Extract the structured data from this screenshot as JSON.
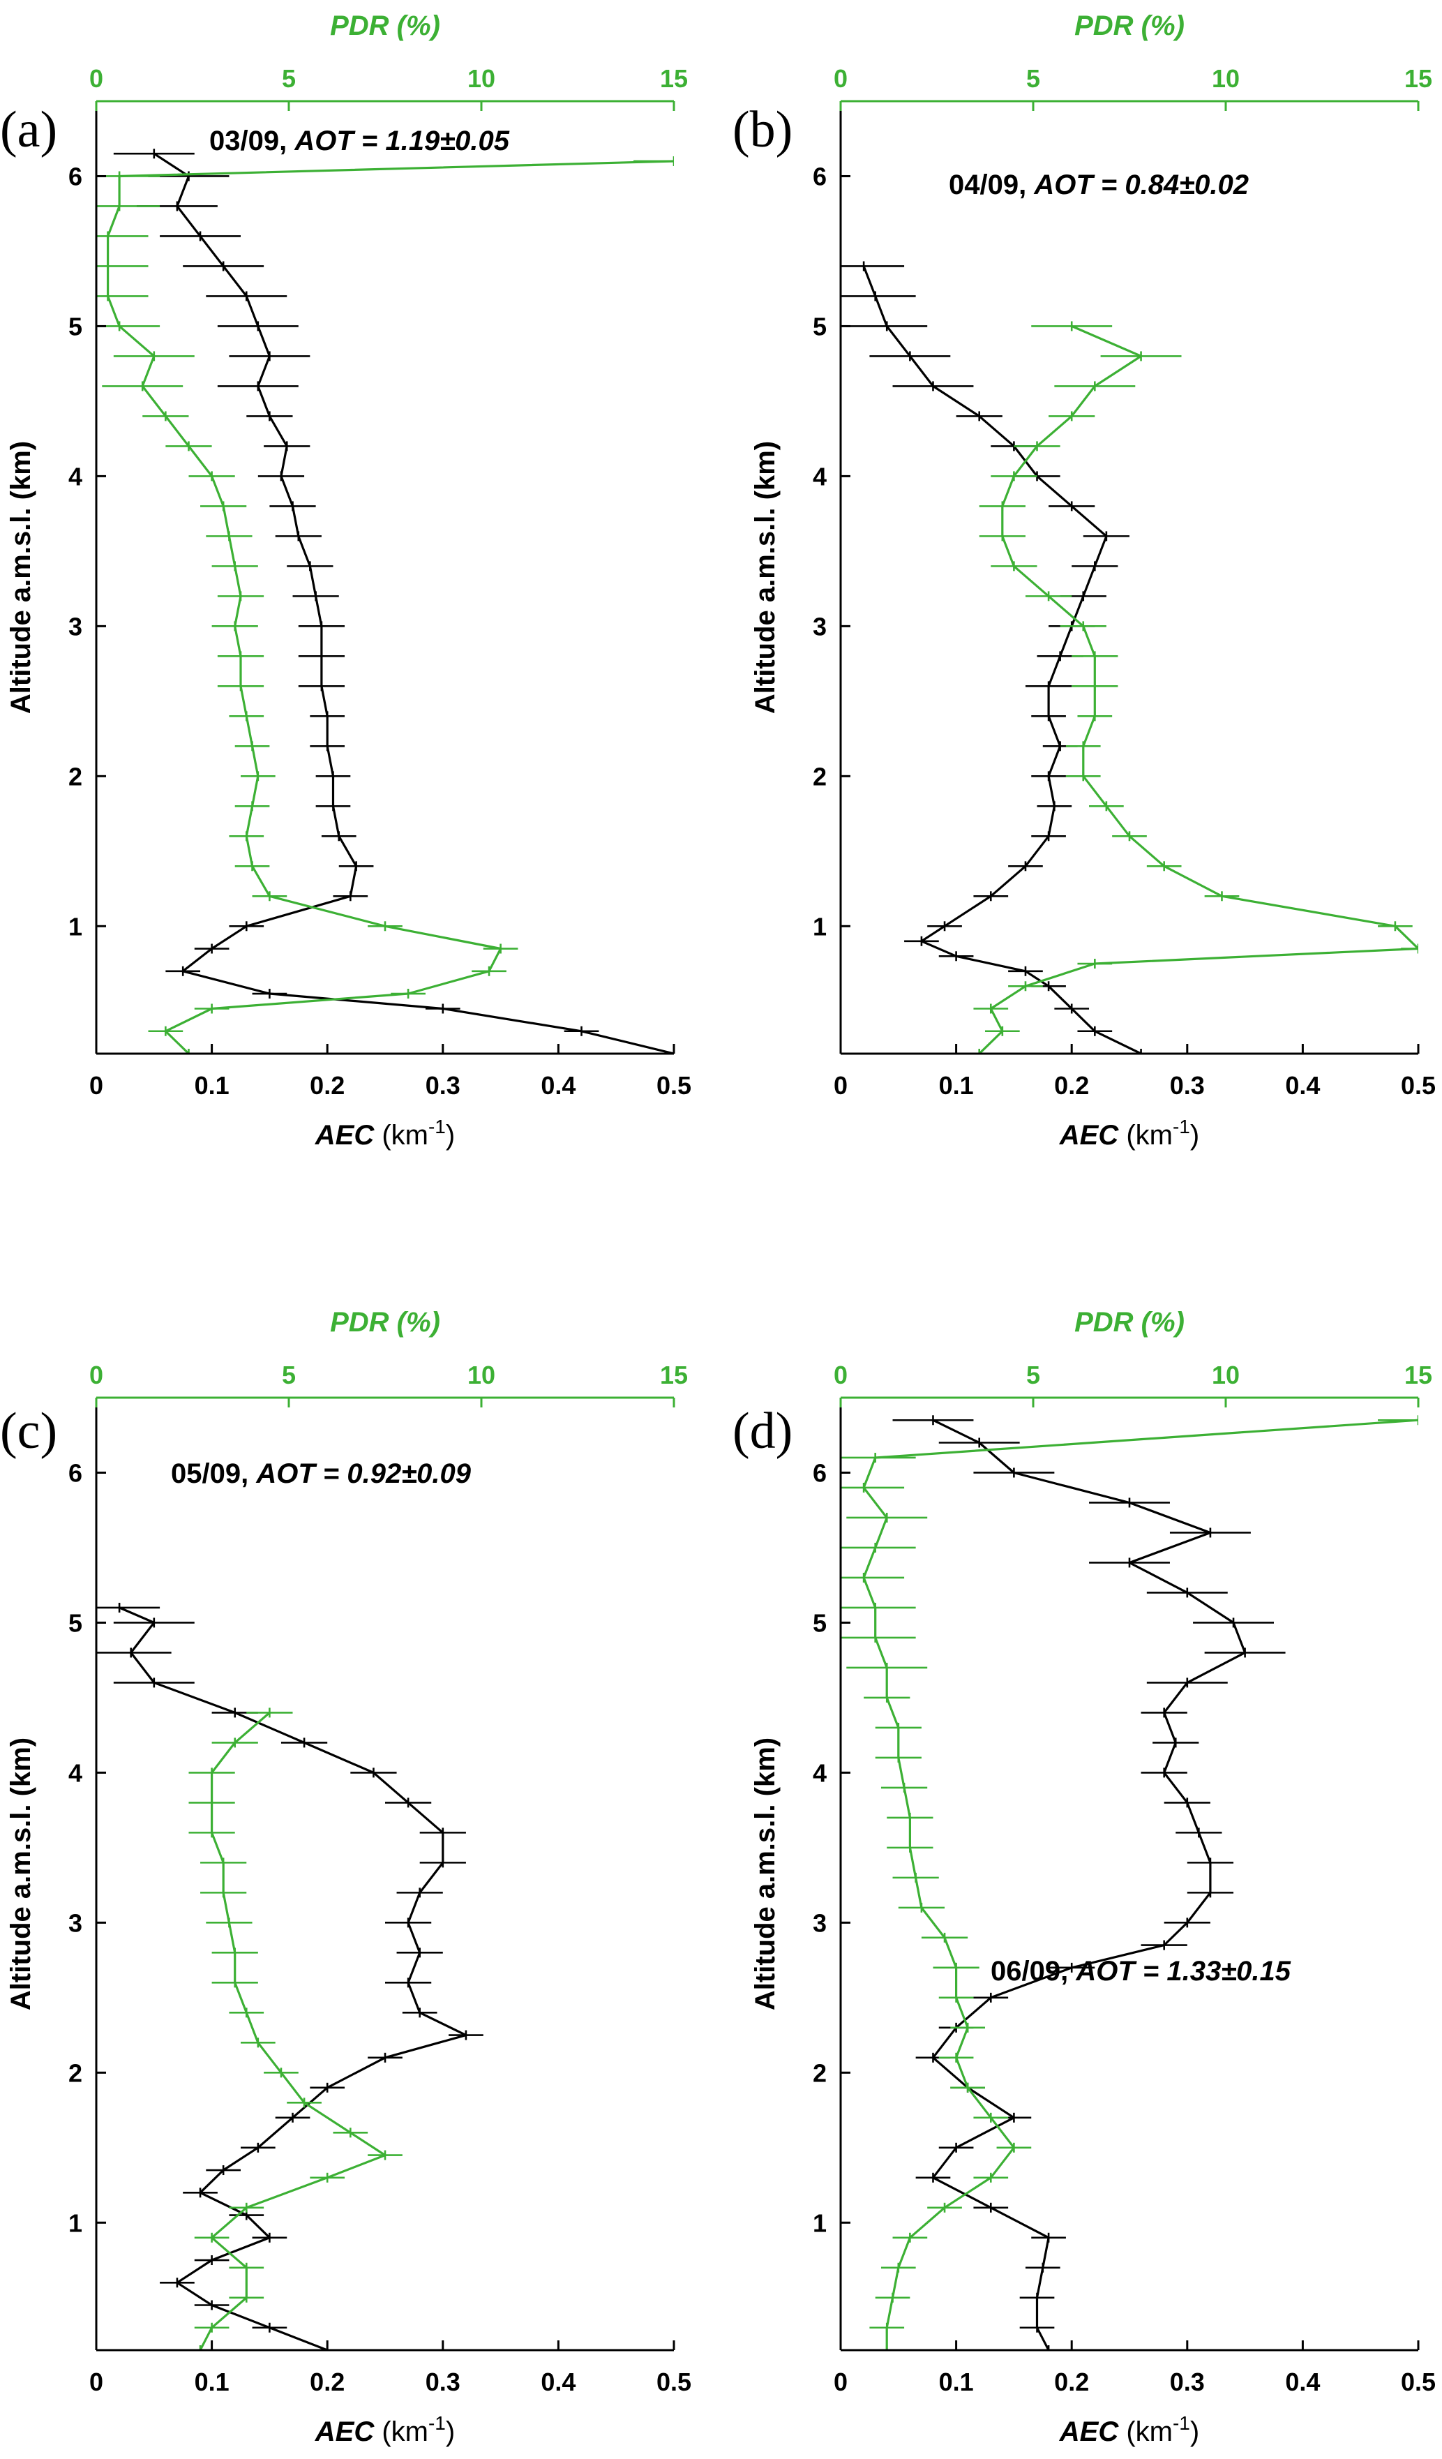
{
  "colors": {
    "aec": "#000000",
    "pdr": "#3cb034",
    "axis": "#000000"
  },
  "figure": {
    "ylabel": "Altitude a.m.s.l. (km)",
    "xlabel_bottom": {
      "main": "AEC",
      "unit_base": " (km",
      "unit_exp": "-1",
      "unit_close": ")"
    },
    "xlabel_top": "PDR (%)"
  },
  "chart_data": [
    {
      "panel": "(a)",
      "type": "line",
      "annotation": {
        "date": "03/09, ",
        "aot_label": "AOT = ",
        "aot_value": "1.19±0.05"
      },
      "xlim_bottom": [
        0,
        0.5
      ],
      "xticks_bottom": [
        "0",
        "0.1",
        "0.2",
        "0.3",
        "0.4",
        "0.5"
      ],
      "xlim_top": [
        0,
        15
      ],
      "xticks_top": [
        "0",
        "5",
        "10",
        "15"
      ],
      "ylim": [
        0.15,
        6.5
      ],
      "yticks": [
        "1",
        "2",
        "3",
        "4",
        "5",
        "6"
      ],
      "series": [
        {
          "color": "black",
          "y": [
            0.15,
            0.3,
            0.45,
            0.55,
            0.7,
            0.85,
            1.0,
            1.2,
            1.4,
            1.6,
            1.8,
            2.0,
            2.2,
            2.4,
            2.6,
            2.8,
            3.0,
            3.2,
            3.4,
            3.6,
            3.8,
            4.0,
            4.2,
            4.4,
            4.6,
            4.8,
            5.0,
            5.2,
            5.4,
            5.6,
            5.8,
            6.0,
            6.15
          ],
          "x": [
            0.5,
            0.42,
            0.3,
            0.15,
            0.075,
            0.1,
            0.13,
            0.22,
            0.225,
            0.21,
            0.205,
            0.205,
            0.2,
            0.2,
            0.195,
            0.195,
            0.195,
            0.19,
            0.185,
            0.175,
            0.17,
            0.16,
            0.165,
            0.15,
            0.14,
            0.15,
            0.14,
            0.13,
            0.11,
            0.09,
            0.07,
            0.08,
            0.05
          ]
        },
        {
          "color": "green",
          "y": [
            0.15,
            0.3,
            0.45,
            0.55,
            0.7,
            0.85,
            1.0,
            1.2,
            1.4,
            1.6,
            1.8,
            2.0,
            2.2,
            2.4,
            2.6,
            2.8,
            3.0,
            3.2,
            3.4,
            3.6,
            3.8,
            4.0,
            4.2,
            4.4,
            4.6,
            4.8,
            5.0,
            5.2,
            5.4,
            5.6,
            5.8,
            6.0,
            6.1
          ],
          "x": [
            0.08,
            0.06,
            0.1,
            0.27,
            0.34,
            0.35,
            0.25,
            0.15,
            0.135,
            0.13,
            0.135,
            0.14,
            0.135,
            0.13,
            0.125,
            0.125,
            0.12,
            0.125,
            0.12,
            0.115,
            0.11,
            0.1,
            0.08,
            0.06,
            0.04,
            0.05,
            0.02,
            0.01,
            0.01,
            0.01,
            0.02,
            0.02,
            0.5
          ]
        }
      ]
    },
    {
      "panel": "(b)",
      "type": "line",
      "annotation": {
        "date": "04/09, ",
        "aot_label": "AOT = ",
        "aot_value": "0.84±0.02"
      },
      "xlim_bottom": [
        0,
        0.5
      ],
      "xticks_bottom": [
        "0",
        "0.1",
        "0.2",
        "0.3",
        "0.4",
        "0.5"
      ],
      "xlim_top": [
        0,
        15
      ],
      "xticks_top": [
        "0",
        "5",
        "10",
        "15"
      ],
      "ylim": [
        0.15,
        6.5
      ],
      "yticks": [
        "1",
        "2",
        "3",
        "4",
        "5",
        "6"
      ],
      "series": [
        {
          "color": "black",
          "y": [
            0.15,
            0.3,
            0.45,
            0.6,
            0.7,
            0.8,
            0.9,
            1.0,
            1.2,
            1.4,
            1.6,
            1.8,
            2.0,
            2.2,
            2.4,
            2.6,
            2.8,
            3.0,
            3.2,
            3.4,
            3.6,
            3.8,
            4.0,
            4.2,
            4.4,
            4.6,
            4.8,
            5.0,
            5.2,
            5.4
          ],
          "x": [
            0.26,
            0.22,
            0.2,
            0.18,
            0.16,
            0.1,
            0.07,
            0.09,
            0.13,
            0.16,
            0.18,
            0.185,
            0.18,
            0.19,
            0.18,
            0.18,
            0.19,
            0.2,
            0.21,
            0.22,
            0.23,
            0.2,
            0.17,
            0.15,
            0.12,
            0.08,
            0.06,
            0.04,
            0.03,
            0.02
          ]
        },
        {
          "color": "green",
          "y": [
            0.15,
            0.3,
            0.45,
            0.6,
            0.75,
            0.85,
            1.0,
            1.2,
            1.4,
            1.6,
            1.8,
            2.0,
            2.2,
            2.4,
            2.6,
            2.8,
            3.0,
            3.2,
            3.4,
            3.6,
            3.8,
            4.0,
            4.2,
            4.4,
            4.6,
            4.8,
            5.0
          ],
          "x": [
            0.12,
            0.14,
            0.13,
            0.16,
            0.22,
            0.5,
            0.48,
            0.33,
            0.28,
            0.25,
            0.23,
            0.21,
            0.21,
            0.22,
            0.22,
            0.22,
            0.21,
            0.18,
            0.15,
            0.14,
            0.14,
            0.15,
            0.17,
            0.2,
            0.22,
            0.26,
            0.2
          ]
        }
      ]
    },
    {
      "panel": "(c)",
      "type": "line",
      "annotation": {
        "date": "05/09, ",
        "aot_label": "AOT = ",
        "aot_value": "0.92±0.09"
      },
      "xlim_bottom": [
        0,
        0.5
      ],
      "xticks_bottom": [
        "0",
        "0.1",
        "0.2",
        "0.3",
        "0.4",
        "0.5"
      ],
      "xlim_top": [
        0,
        15
      ],
      "xticks_top": [
        "0",
        "5",
        "10",
        "15"
      ],
      "ylim": [
        0.15,
        6.5
      ],
      "yticks": [
        "1",
        "2",
        "3",
        "4",
        "5",
        "6"
      ],
      "series": [
        {
          "color": "black",
          "y": [
            0.15,
            0.3,
            0.45,
            0.6,
            0.75,
            0.9,
            1.05,
            1.2,
            1.35,
            1.5,
            1.7,
            1.9,
            2.1,
            2.25,
            2.4,
            2.6,
            2.8,
            3.0,
            3.2,
            3.4,
            3.6,
            3.8,
            4.0,
            4.2,
            4.4,
            4.6,
            4.8,
            5.0,
            5.1
          ],
          "x": [
            0.2,
            0.15,
            0.1,
            0.07,
            0.1,
            0.15,
            0.13,
            0.09,
            0.11,
            0.14,
            0.17,
            0.2,
            0.25,
            0.32,
            0.28,
            0.27,
            0.28,
            0.27,
            0.28,
            0.3,
            0.3,
            0.27,
            0.24,
            0.18,
            0.12,
            0.05,
            0.03,
            0.05,
            0.02
          ]
        },
        {
          "color": "green",
          "y": [
            0.15,
            0.3,
            0.5,
            0.7,
            0.9,
            1.1,
            1.3,
            1.45,
            1.6,
            1.8,
            2.0,
            2.2,
            2.4,
            2.6,
            2.8,
            3.0,
            3.2,
            3.4,
            3.6,
            3.8,
            4.0,
            4.2,
            4.4
          ],
          "x": [
            0.09,
            0.1,
            0.13,
            0.13,
            0.1,
            0.13,
            0.2,
            0.25,
            0.22,
            0.18,
            0.16,
            0.14,
            0.13,
            0.12,
            0.12,
            0.115,
            0.11,
            0.11,
            0.1,
            0.1,
            0.1,
            0.12,
            0.15
          ]
        }
      ]
    },
    {
      "panel": "(d)",
      "type": "line",
      "annotation": {
        "date": "06/09, ",
        "aot_label": "AOT = ",
        "aot_value": "1.33±0.15"
      },
      "xlim_bottom": [
        0,
        0.5
      ],
      "xticks_bottom": [
        "0",
        "0.1",
        "0.2",
        "0.3",
        "0.4",
        "0.5"
      ],
      "xlim_top": [
        0,
        15
      ],
      "xticks_top": [
        "0",
        "5",
        "10",
        "15"
      ],
      "ylim": [
        0.15,
        6.5
      ],
      "yticks": [
        "1",
        "2",
        "3",
        "4",
        "5",
        "6"
      ],
      "series": [
        {
          "color": "black",
          "y": [
            0.15,
            0.3,
            0.5,
            0.7,
            0.9,
            1.1,
            1.3,
            1.5,
            1.7,
            1.9,
            2.1,
            2.3,
            2.5,
            2.7,
            2.85,
            3.0,
            3.2,
            3.4,
            3.6,
            3.8,
            4.0,
            4.2,
            4.4,
            4.6,
            4.8,
            5.0,
            5.2,
            5.4,
            5.6,
            5.8,
            6.0,
            6.2,
            6.35
          ],
          "x": [
            0.18,
            0.17,
            0.17,
            0.175,
            0.18,
            0.13,
            0.08,
            0.1,
            0.15,
            0.11,
            0.08,
            0.1,
            0.13,
            0.2,
            0.28,
            0.3,
            0.32,
            0.32,
            0.31,
            0.3,
            0.28,
            0.29,
            0.28,
            0.3,
            0.35,
            0.34,
            0.3,
            0.25,
            0.32,
            0.25,
            0.15,
            0.12,
            0.08
          ]
        },
        {
          "color": "green",
          "y": [
            0.15,
            0.3,
            0.5,
            0.7,
            0.9,
            1.1,
            1.3,
            1.5,
            1.7,
            1.9,
            2.1,
            2.3,
            2.5,
            2.7,
            2.9,
            3.1,
            3.3,
            3.5,
            3.7,
            3.9,
            4.1,
            4.3,
            4.5,
            4.7,
            4.9,
            5.1,
            5.3,
            5.5,
            5.7,
            5.9,
            6.1,
            6.35
          ],
          "x": [
            0.04,
            0.04,
            0.045,
            0.05,
            0.06,
            0.09,
            0.13,
            0.15,
            0.13,
            0.11,
            0.1,
            0.11,
            0.1,
            0.1,
            0.09,
            0.07,
            0.065,
            0.06,
            0.06,
            0.055,
            0.05,
            0.05,
            0.04,
            0.04,
            0.03,
            0.03,
            0.02,
            0.03,
            0.04,
            0.02,
            0.03,
            0.5
          ]
        }
      ]
    }
  ]
}
